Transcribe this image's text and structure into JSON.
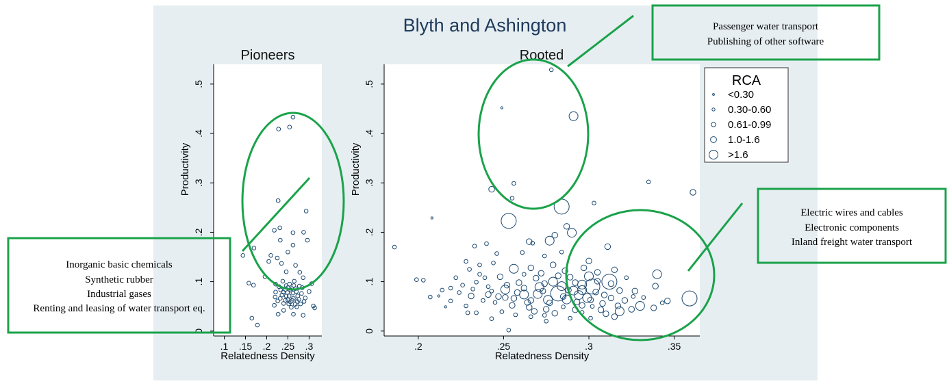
{
  "title": "Blyth and Ashington",
  "colors": {
    "background": "#e6eef1",
    "plot_bg": "#ffffff",
    "marker": "#1a476f",
    "title_text": "#1e3a5c",
    "annotation_green": "#1aa24a"
  },
  "annotations": {
    "top": [
      "Passenger water transport",
      "Publishing of other software"
    ],
    "left": [
      "Inorganic basic chemicals",
      "Synthetic rubber",
      "Industrial gases",
      "Renting and leasing of water transport eq."
    ],
    "right": [
      "Electric wires and cables",
      "Electronic components",
      "Inland freight water transport"
    ]
  },
  "legend": {
    "title": "RCA",
    "entries": [
      "<0.30",
      "0.30-0.60",
      "0.61-0.99",
      "1.0-1.6",
      ">1.6"
    ]
  },
  "chart_data": [
    {
      "type": "scatter",
      "title": "Pioneers",
      "xlabel": "Relatedness Density",
      "ylabel": "Productivity",
      "xlim": [
        0.075,
        0.33
      ],
      "ylim": [
        -0.01,
        0.54
      ],
      "xticks": [
        ".1",
        ".15",
        ".2",
        ".25",
        ".3"
      ],
      "xtick_values": [
        0.1,
        0.15,
        0.2,
        0.25,
        0.3
      ],
      "yticks": [
        "0",
        ".1",
        ".2",
        ".3",
        ".4",
        ".5"
      ],
      "ytick_values": [
        0,
        0.1,
        0.2,
        0.3,
        0.4,
        0.5
      ],
      "size_variable": "RCA class (0-4)",
      "points": [
        [
          0.262,
          0.433,
          1
        ],
        [
          0.228,
          0.409,
          1
        ],
        [
          0.254,
          0.413,
          1
        ],
        [
          0.227,
          0.264,
          1
        ],
        [
          0.293,
          0.243,
          1
        ],
        [
          0.231,
          0.209,
          1
        ],
        [
          0.218,
          0.204,
          1
        ],
        [
          0.262,
          0.199,
          1
        ],
        [
          0.287,
          0.2,
          1
        ],
        [
          0.296,
          0.184,
          1
        ],
        [
          0.232,
          0.184,
          1
        ],
        [
          0.262,
          0.174,
          1
        ],
        [
          0.17,
          0.168,
          1
        ],
        [
          0.144,
          0.153,
          1
        ],
        [
          0.21,
          0.153,
          1
        ],
        [
          0.225,
          0.148,
          1
        ],
        [
          0.25,
          0.16,
          1
        ],
        [
          0.205,
          0.141,
          1
        ],
        [
          0.235,
          0.137,
          1
        ],
        [
          0.268,
          0.133,
          1
        ],
        [
          0.278,
          0.119,
          1
        ],
        [
          0.286,
          0.108,
          1
        ],
        [
          0.196,
          0.11,
          1
        ],
        [
          0.246,
          0.12,
          1
        ],
        [
          0.158,
          0.097,
          1
        ],
        [
          0.169,
          0.093,
          1
        ],
        [
          0.221,
          0.095,
          1
        ],
        [
          0.306,
          0.096,
          1
        ],
        [
          0.3,
          0.08,
          1
        ],
        [
          0.313,
          0.047,
          1
        ],
        [
          0.31,
          0.051,
          1
        ],
        [
          0.165,
          0.026,
          1
        ],
        [
          0.178,
          0.012,
          1
        ],
        [
          0.218,
          0.052,
          1
        ],
        [
          0.227,
          0.034,
          1
        ],
        [
          0.263,
          0.034,
          1
        ],
        [
          0.286,
          0.032,
          1
        ],
        [
          0.24,
          0.042,
          1
        ],
        [
          0.252,
          0.055,
          1
        ],
        [
          0.272,
          0.06,
          1
        ],
        [
          0.246,
          0.071,
          1
        ],
        [
          0.259,
          0.086,
          1
        ],
        [
          0.233,
          0.083,
          1
        ],
        [
          0.277,
          0.091,
          1
        ],
        [
          0.238,
          0.101,
          1
        ],
        [
          0.265,
          0.101,
          1
        ],
        [
          0.25,
          0.063,
          1
        ],
        [
          0.262,
          0.077,
          1
        ],
        [
          0.22,
          0.069,
          1
        ],
        [
          0.273,
          0.071,
          1
        ],
        [
          0.254,
          0.095,
          1
        ],
        [
          0.244,
          0.084,
          1
        ],
        [
          0.288,
          0.06,
          1
        ],
        [
          0.226,
          0.061,
          1
        ],
        [
          0.258,
          0.048,
          1
        ],
        [
          0.271,
          0.049,
          1
        ],
        [
          0.24,
          0.056,
          1
        ],
        [
          0.282,
          0.076,
          1
        ],
        [
          0.249,
          0.078,
          1
        ],
        [
          0.263,
          0.066,
          1
        ],
        [
          0.236,
          0.073,
          1
        ],
        [
          0.256,
          0.059,
          1
        ],
        [
          0.268,
          0.086,
          1
        ],
        [
          0.246,
          0.092,
          1
        ],
        [
          0.232,
          0.066,
          1
        ],
        [
          0.28,
          0.055,
          1
        ],
        [
          0.253,
          0.071,
          1
        ],
        [
          0.267,
          0.054,
          1
        ],
        [
          0.26,
          0.062,
          1
        ],
        [
          0.244,
          0.062,
          1
        ],
        [
          0.276,
          0.064,
          1
        ],
        [
          0.239,
          0.079,
          1
        ],
        [
          0.257,
          0.083,
          1
        ],
        [
          0.25,
          0.088,
          1
        ],
        [
          0.229,
          0.09,
          1
        ],
        [
          0.284,
          0.088,
          1
        ],
        [
          0.27,
          0.08,
          1
        ],
        [
          0.264,
          0.092,
          1
        ],
        [
          0.291,
          0.067,
          1
        ],
        [
          0.221,
          0.079,
          1
        ]
      ]
    },
    {
      "type": "scatter",
      "title": "Rooted",
      "xlabel": "Relatedness Density",
      "ylabel": "Productivity",
      "xlim": [
        0.18,
        0.365
      ],
      "ylim": [
        -0.01,
        0.54
      ],
      "xticks": [
        ".2",
        ".25",
        ".3",
        ".35"
      ],
      "xtick_values": [
        0.2,
        0.25,
        0.3,
        0.35
      ],
      "yticks": [
        "0",
        ".1",
        ".2",
        ".3",
        ".4",
        ".5"
      ],
      "ytick_values": [
        0,
        0.1,
        0.2,
        0.3,
        0.4,
        0.5
      ],
      "size_variable": "RCA class (0-4)",
      "points": [
        [
          0.278,
          0.529,
          1
        ],
        [
          0.249,
          0.452,
          0
        ],
        [
          0.291,
          0.435,
          3
        ],
        [
          0.256,
          0.299,
          1
        ],
        [
          0.243,
          0.287,
          2
        ],
        [
          0.255,
          0.269,
          1
        ],
        [
          0.335,
          0.302,
          1
        ],
        [
          0.361,
          0.281,
          2
        ],
        [
          0.303,
          0.259,
          1
        ],
        [
          0.284,
          0.252,
          4
        ],
        [
          0.253,
          0.223,
          4
        ],
        [
          0.208,
          0.229,
          0
        ],
        [
          0.287,
          0.212,
          2
        ],
        [
          0.29,
          0.199,
          3
        ],
        [
          0.186,
          0.17,
          1
        ],
        [
          0.28,
          0.194,
          2
        ],
        [
          0.277,
          0.183,
          3
        ],
        [
          0.267,
          0.178,
          1
        ],
        [
          0.233,
          0.172,
          1
        ],
        [
          0.24,
          0.177,
          1
        ],
        [
          0.265,
          0.181,
          2
        ],
        [
          0.246,
          0.157,
          1
        ],
        [
          0.261,
          0.159,
          1
        ],
        [
          0.274,
          0.152,
          1
        ],
        [
          0.284,
          0.16,
          1
        ],
        [
          0.311,
          0.171,
          2
        ],
        [
          0.3,
          0.142,
          2
        ],
        [
          0.228,
          0.141,
          1
        ],
        [
          0.236,
          0.134,
          1
        ],
        [
          0.244,
          0.138,
          1
        ],
        [
          0.256,
          0.126,
          3
        ],
        [
          0.266,
          0.128,
          2
        ],
        [
          0.279,
          0.134,
          2
        ],
        [
          0.34,
          0.115,
          3
        ],
        [
          0.339,
          0.091,
          2
        ],
        [
          0.313,
          0.096,
          2
        ],
        [
          0.318,
          0.082,
          2
        ],
        [
          0.327,
          0.081,
          2
        ],
        [
          0.33,
          0.051,
          3
        ],
        [
          0.338,
          0.047,
          2
        ],
        [
          0.343,
          0.057,
          1
        ],
        [
          0.346,
          0.061,
          2
        ],
        [
          0.359,
          0.066,
          4
        ],
        [
          0.312,
          0.1,
          4
        ],
        [
          0.3,
          0.111,
          3
        ],
        [
          0.291,
          0.082,
          3
        ],
        [
          0.282,
          0.076,
          4
        ],
        [
          0.271,
          0.089,
          3
        ],
        [
          0.262,
          0.074,
          3
        ],
        [
          0.251,
          0.084,
          3
        ],
        [
          0.241,
          0.074,
          2
        ],
        [
          0.231,
          0.071,
          2
        ],
        [
          0.224,
          0.078,
          1
        ],
        [
          0.214,
          0.083,
          1
        ],
        [
          0.199,
          0.104,
          1
        ],
        [
          0.203,
          0.103,
          1
        ],
        [
          0.207,
          0.069,
          1
        ],
        [
          0.212,
          0.071,
          0
        ],
        [
          0.216,
          0.049,
          0
        ],
        [
          0.228,
          0.051,
          1
        ],
        [
          0.234,
          0.037,
          1
        ],
        [
          0.249,
          0.039,
          1
        ],
        [
          0.257,
          0.033,
          1
        ],
        [
          0.266,
          0.029,
          1
        ],
        [
          0.275,
          0.02,
          1
        ],
        [
          0.253,
          0.002,
          1
        ],
        [
          0.289,
          0.026,
          1
        ],
        [
          0.301,
          0.026,
          1
        ],
        [
          0.31,
          0.035,
          2
        ],
        [
          0.318,
          0.04,
          3
        ],
        [
          0.308,
          0.056,
          2
        ],
        [
          0.296,
          0.052,
          2
        ],
        [
          0.285,
          0.049,
          1
        ],
        [
          0.275,
          0.044,
          2
        ],
        [
          0.265,
          0.048,
          2
        ],
        [
          0.255,
          0.052,
          2
        ],
        [
          0.245,
          0.058,
          1
        ],
        [
          0.238,
          0.062,
          1
        ],
        [
          0.229,
          0.037,
          1
        ],
        [
          0.243,
          0.025,
          1
        ],
        [
          0.259,
          0.098,
          2
        ],
        [
          0.269,
          0.107,
          2
        ],
        [
          0.279,
          0.1,
          3
        ],
        [
          0.289,
          0.109,
          2
        ],
        [
          0.296,
          0.094,
          3
        ],
        [
          0.304,
          0.079,
          2
        ],
        [
          0.313,
          0.067,
          2
        ],
        [
          0.321,
          0.062,
          2
        ],
        [
          0.326,
          0.07,
          1
        ],
        [
          0.307,
          0.043,
          2
        ],
        [
          0.299,
          0.067,
          3
        ],
        [
          0.287,
          0.064,
          3
        ],
        [
          0.276,
          0.063,
          3
        ],
        [
          0.266,
          0.062,
          2
        ],
        [
          0.256,
          0.066,
          2
        ],
        [
          0.247,
          0.07,
          2
        ],
        [
          0.27,
          0.075,
          3
        ],
        [
          0.284,
          0.091,
          3
        ],
        [
          0.294,
          0.073,
          3
        ],
        [
          0.262,
          0.087,
          2
        ],
        [
          0.252,
          0.093,
          2
        ],
        [
          0.241,
          0.09,
          1
        ],
        [
          0.234,
          0.099,
          1
        ],
        [
          0.226,
          0.093,
          1
        ],
        [
          0.219,
          0.061,
          1
        ],
        [
          0.222,
          0.108,
          1
        ],
        [
          0.236,
          0.115,
          1
        ],
        [
          0.248,
          0.11,
          2
        ],
        [
          0.272,
          0.117,
          2
        ],
        [
          0.286,
          0.122,
          2
        ],
        [
          0.297,
          0.128,
          2
        ],
        [
          0.305,
          0.119,
          2
        ],
        [
          0.315,
          0.124,
          2
        ],
        [
          0.322,
          0.108,
          1
        ],
        [
          0.302,
          0.09,
          4
        ],
        [
          0.292,
          0.043,
          2
        ],
        [
          0.28,
          0.036,
          2
        ],
        [
          0.268,
          0.04,
          2
        ],
        [
          0.277,
          0.057,
          2
        ],
        [
          0.285,
          0.07,
          2
        ],
        [
          0.293,
          0.059,
          2
        ],
        [
          0.301,
          0.063,
          2
        ],
        [
          0.309,
          0.073,
          2
        ],
        [
          0.317,
          0.051,
          2
        ],
        [
          0.282,
          0.112,
          2
        ],
        [
          0.274,
          0.096,
          2
        ],
        [
          0.258,
          0.078,
          2
        ],
        [
          0.264,
          0.058,
          2
        ],
        [
          0.243,
          0.081,
          1
        ],
        [
          0.232,
          0.085,
          1
        ],
        [
          0.292,
          0.098,
          2
        ],
        [
          0.305,
          0.101,
          2
        ],
        [
          0.262,
          0.115,
          1
        ],
        [
          0.23,
          0.125,
          1
        ],
        [
          0.239,
          0.108,
          1
        ],
        [
          0.219,
          0.087,
          1
        ],
        [
          0.251,
          0.068,
          2
        ],
        [
          0.273,
          0.081,
          2
        ],
        [
          0.288,
          0.083,
          2
        ],
        [
          0.296,
          0.083,
          3
        ],
        [
          0.274,
          0.032,
          1
        ],
        [
          0.296,
          0.038,
          1
        ],
        [
          0.315,
          0.029,
          2
        ],
        [
          0.325,
          0.044,
          2
        ],
        [
          0.332,
          0.068,
          1
        ],
        [
          0.302,
          0.05,
          1
        ]
      ]
    }
  ]
}
